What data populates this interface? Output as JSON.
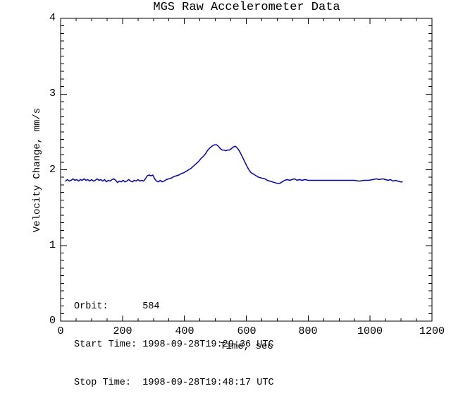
{
  "chart_data": {
    "type": "line",
    "title": "MGS Raw Accelerometer Data",
    "xlabel": "Time, sec",
    "ylabel": "Velocity Change, mm/s",
    "xlim": [
      0,
      1200
    ],
    "ylim": [
      0,
      4
    ],
    "xticks": [
      0,
      200,
      400,
      600,
      800,
      1000,
      1200
    ],
    "yticks": [
      0,
      1,
      2,
      3,
      4
    ],
    "x_minor_step": 50,
    "y_minor_step": 0.1,
    "grid": false,
    "legend": "none",
    "line_color": "#0000CC",
    "axis_color": "#000000",
    "background_color": "#FFFFFF",
    "annotations": {
      "orbit_label": "Orbit:",
      "orbit_value": "584",
      "start_time_label": "Start Time:",
      "start_time_value": "1998-09-28T19:29:36 UTC",
      "stop_time_label": "Stop Time:",
      "stop_time_value": "1998-09-28T19:48:17 UTC",
      "lines": [
        "Orbit:      584",
        "Start Time: 1998-09-28T19:29:36 UTC",
        "Stop Time:  1998-09-28T19:48:17 UTC"
      ]
    },
    "series": [
      {
        "name": "velocity_change",
        "color": "#0000CC",
        "points": [
          [
            16,
            1.85
          ],
          [
            22,
            1.87
          ],
          [
            28,
            1.85
          ],
          [
            34,
            1.86
          ],
          [
            40,
            1.88
          ],
          [
            46,
            1.86
          ],
          [
            52,
            1.87
          ],
          [
            58,
            1.85
          ],
          [
            64,
            1.87
          ],
          [
            70,
            1.86
          ],
          [
            76,
            1.88
          ],
          [
            82,
            1.86
          ],
          [
            88,
            1.87
          ],
          [
            94,
            1.85
          ],
          [
            100,
            1.87
          ],
          [
            106,
            1.85
          ],
          [
            112,
            1.86
          ],
          [
            118,
            1.88
          ],
          [
            124,
            1.86
          ],
          [
            130,
            1.87
          ],
          [
            136,
            1.85
          ],
          [
            142,
            1.87
          ],
          [
            148,
            1.84
          ],
          [
            154,
            1.86
          ],
          [
            160,
            1.85
          ],
          [
            166,
            1.87
          ],
          [
            172,
            1.88
          ],
          [
            178,
            1.86
          ],
          [
            184,
            1.83
          ],
          [
            190,
            1.85
          ],
          [
            196,
            1.84
          ],
          [
            202,
            1.86
          ],
          [
            208,
            1.84
          ],
          [
            214,
            1.85
          ],
          [
            220,
            1.87
          ],
          [
            226,
            1.85
          ],
          [
            232,
            1.84
          ],
          [
            238,
            1.86
          ],
          [
            244,
            1.85
          ],
          [
            250,
            1.87
          ],
          [
            256,
            1.85
          ],
          [
            262,
            1.86
          ],
          [
            268,
            1.85
          ],
          [
            274,
            1.88
          ],
          [
            280,
            1.92
          ],
          [
            286,
            1.93
          ],
          [
            292,
            1.92
          ],
          [
            298,
            1.93
          ],
          [
            304,
            1.88
          ],
          [
            310,
            1.85
          ],
          [
            316,
            1.84
          ],
          [
            322,
            1.86
          ],
          [
            328,
            1.84
          ],
          [
            334,
            1.85
          ],
          [
            342,
            1.87
          ],
          [
            350,
            1.88
          ],
          [
            358,
            1.89
          ],
          [
            366,
            1.91
          ],
          [
            374,
            1.92
          ],
          [
            382,
            1.93
          ],
          [
            390,
            1.95
          ],
          [
            398,
            1.96
          ],
          [
            406,
            1.98
          ],
          [
            414,
            2.0
          ],
          [
            422,
            2.02
          ],
          [
            430,
            2.05
          ],
          [
            438,
            2.08
          ],
          [
            446,
            2.11
          ],
          [
            454,
            2.15
          ],
          [
            462,
            2.18
          ],
          [
            468,
            2.21
          ],
          [
            474,
            2.25
          ],
          [
            480,
            2.28
          ],
          [
            486,
            2.3
          ],
          [
            492,
            2.32
          ],
          [
            498,
            2.33
          ],
          [
            504,
            2.33
          ],
          [
            510,
            2.31
          ],
          [
            516,
            2.28
          ],
          [
            522,
            2.26
          ],
          [
            528,
            2.26
          ],
          [
            534,
            2.25
          ],
          [
            540,
            2.26
          ],
          [
            546,
            2.26
          ],
          [
            552,
            2.28
          ],
          [
            558,
            2.3
          ],
          [
            564,
            2.31
          ],
          [
            568,
            2.3
          ],
          [
            574,
            2.27
          ],
          [
            580,
            2.23
          ],
          [
            586,
            2.18
          ],
          [
            592,
            2.13
          ],
          [
            598,
            2.08
          ],
          [
            604,
            2.03
          ],
          [
            610,
            1.99
          ],
          [
            616,
            1.96
          ],
          [
            624,
            1.94
          ],
          [
            632,
            1.92
          ],
          [
            640,
            1.9
          ],
          [
            650,
            1.89
          ],
          [
            660,
            1.88
          ],
          [
            668,
            1.86
          ],
          [
            676,
            1.85
          ],
          [
            684,
            1.84
          ],
          [
            692,
            1.83
          ],
          [
            700,
            1.82
          ],
          [
            708,
            1.82
          ],
          [
            716,
            1.84
          ],
          [
            724,
            1.86
          ],
          [
            732,
            1.87
          ],
          [
            740,
            1.86
          ],
          [
            748,
            1.87
          ],
          [
            756,
            1.88
          ],
          [
            764,
            1.86
          ],
          [
            772,
            1.87
          ],
          [
            780,
            1.86
          ],
          [
            790,
            1.87
          ],
          [
            800,
            1.86
          ],
          [
            815,
            1.86
          ],
          [
            830,
            1.86
          ],
          [
            845,
            1.86
          ],
          [
            860,
            1.86
          ],
          [
            875,
            1.86
          ],
          [
            890,
            1.86
          ],
          [
            905,
            1.86
          ],
          [
            920,
            1.86
          ],
          [
            935,
            1.86
          ],
          [
            950,
            1.86
          ],
          [
            965,
            1.85
          ],
          [
            980,
            1.86
          ],
          [
            995,
            1.86
          ],
          [
            1010,
            1.87
          ],
          [
            1020,
            1.88
          ],
          [
            1030,
            1.87
          ],
          [
            1040,
            1.88
          ],
          [
            1050,
            1.87
          ],
          [
            1058,
            1.86
          ],
          [
            1066,
            1.87
          ],
          [
            1074,
            1.85
          ],
          [
            1082,
            1.86
          ],
          [
            1090,
            1.85
          ],
          [
            1098,
            1.84
          ],
          [
            1104,
            1.84
          ]
        ]
      }
    ]
  }
}
